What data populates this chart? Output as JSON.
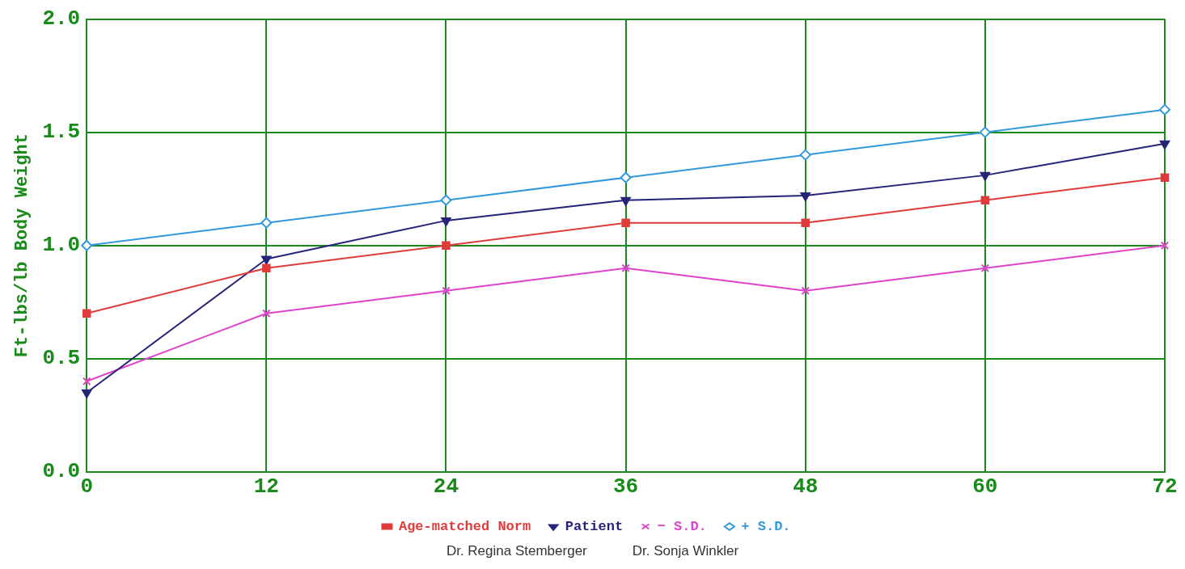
{
  "chart_data": {
    "type": "line",
    "ylabel": "Ft-lbs/lb Body Weight",
    "x": [
      0,
      12,
      24,
      36,
      48,
      60,
      72
    ],
    "xlim": [
      0,
      72
    ],
    "xticks": [
      0,
      12,
      24,
      36,
      48,
      60,
      72
    ],
    "ylim": [
      0,
      2
    ],
    "yticks": [
      {
        "value": 0,
        "label": "0.0"
      },
      {
        "value": 0.5,
        "label": "0.5"
      },
      {
        "value": 1,
        "label": "1.0"
      },
      {
        "value": 1.5,
        "label": "1.5"
      },
      {
        "value": 2,
        "label": "2.0"
      }
    ],
    "grid": true,
    "legend": "bottom",
    "line_style": "solid",
    "series": [
      {
        "name": "Age-matched Norm",
        "color": "#e03a3a",
        "marker": "square",
        "values": [
          0.7,
          0.9,
          1.0,
          1.1,
          1.1,
          1.2,
          1.3
        ]
      },
      {
        "name": "Patient",
        "color": "#25237a",
        "marker": "triangle",
        "values": [
          0.35,
          0.94,
          1.11,
          1.2,
          1.22,
          1.31,
          1.45
        ]
      },
      {
        "name": "− S.D.",
        "color": "#dd44cc",
        "marker": "cross",
        "values": [
          0.4,
          0.7,
          0.8,
          0.9,
          0.8,
          0.9,
          1.0
        ]
      },
      {
        "name": "+ S.D.",
        "color": "#3399dd",
        "marker": "diamond",
        "values": [
          1.0,
          1.1,
          1.2,
          1.3,
          1.4,
          1.5,
          1.6
        ]
      }
    ],
    "annotations": [
      "Dr. Regina Stemberger",
      "Dr. Sonja Winkler"
    ]
  }
}
